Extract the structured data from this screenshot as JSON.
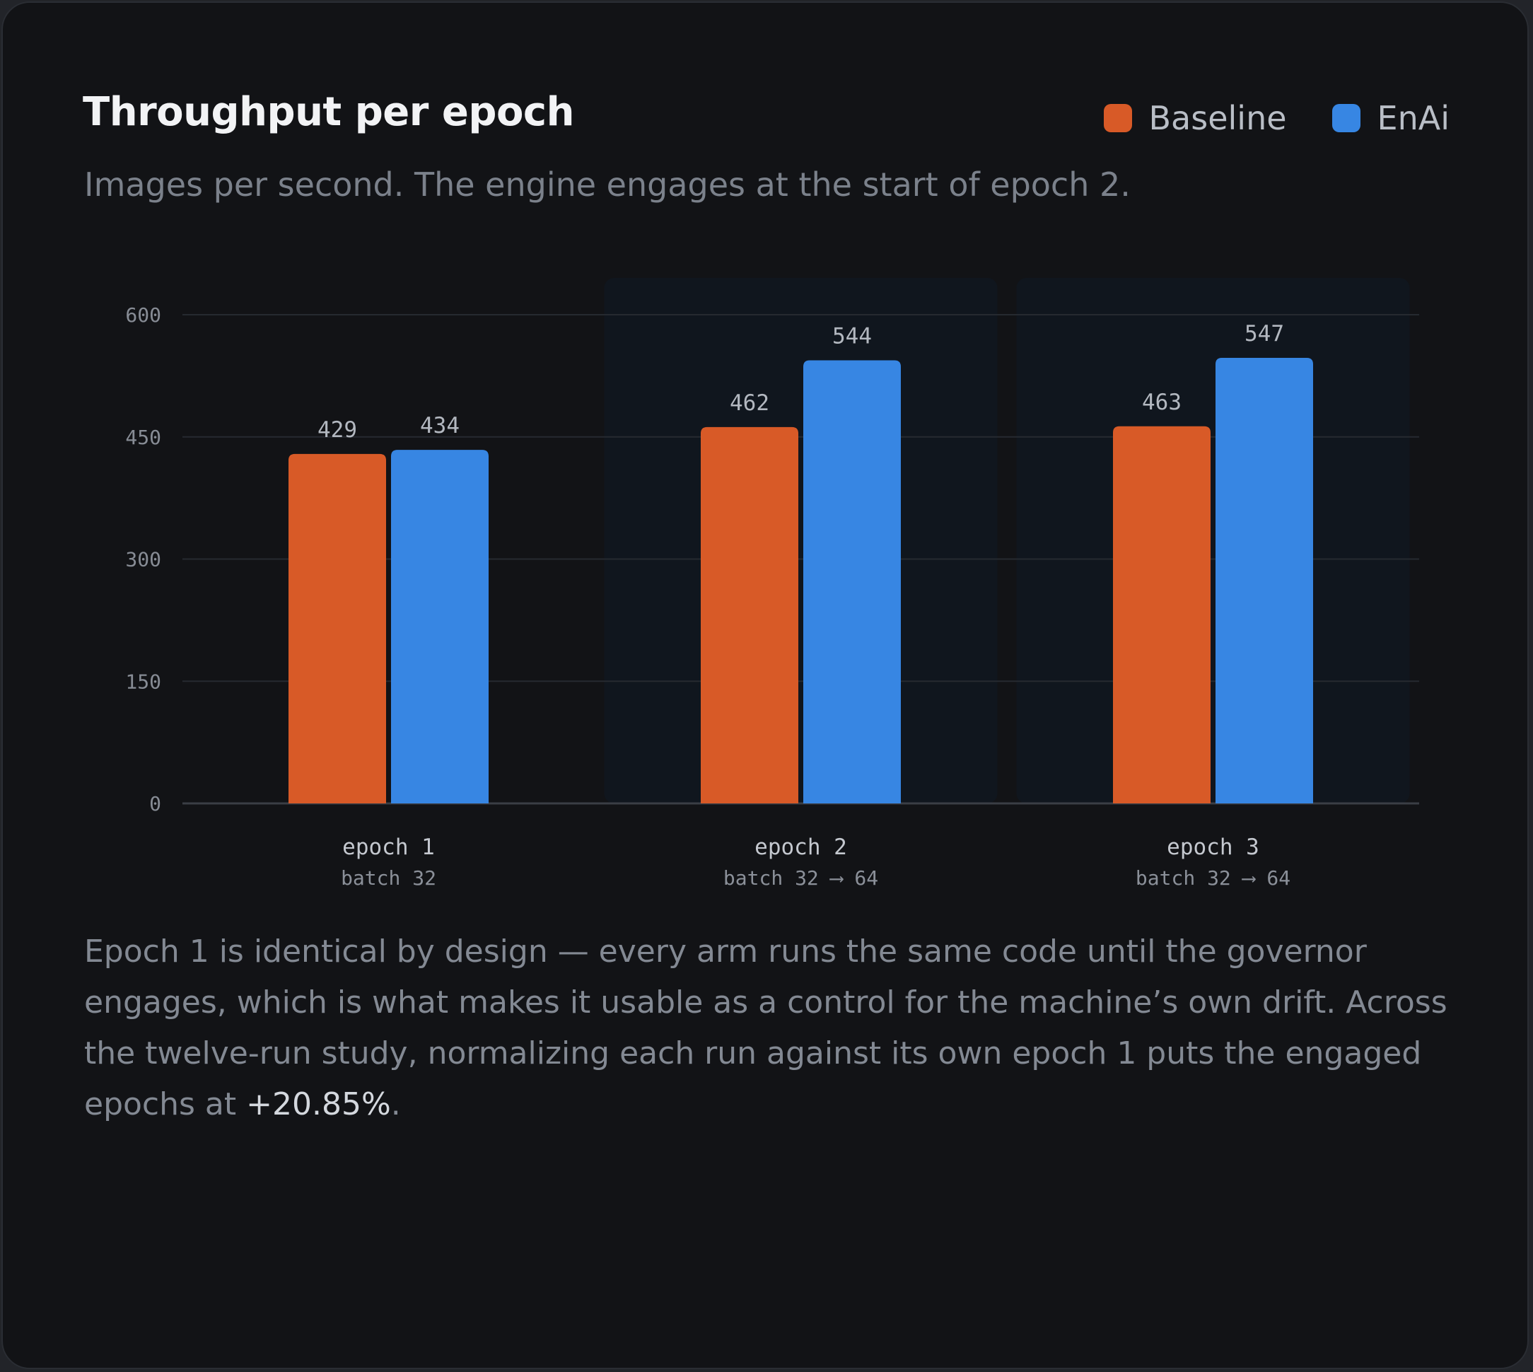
{
  "header": {
    "title": "Throughput per epoch",
    "subtitle": "Images per second. The engine engages at the start of epoch 2."
  },
  "colors": {
    "baseline": "#d85a27",
    "enai": "#3786e3",
    "engaged_band": "#10161e"
  },
  "chart_data": {
    "type": "bar",
    "title": "Throughput per epoch",
    "subtitle": "Images per second. The engine engages at the start of epoch 2.",
    "categories": [
      "epoch 1",
      "epoch 2",
      "epoch 3"
    ],
    "category_sublabels": [
      "batch 32",
      "batch 32 ⟶ 64",
      "batch 32 ⟶ 64"
    ],
    "series": [
      {
        "name": "Baseline",
        "values": [
          429,
          462,
          463
        ]
      },
      {
        "name": "EnAi",
        "values": [
          434,
          544,
          547
        ]
      }
    ],
    "ylim": [
      0,
      600
    ],
    "yticks": [
      0,
      150,
      300,
      450,
      600
    ],
    "grid": true,
    "legend_position": "top-right",
    "highlighted_categories": [
      "epoch 2",
      "epoch 3"
    ]
  },
  "note": {
    "text_before": "Epoch 1 is identical by design — every arm runs the same code until the governor engages, which is what makes it usable as a control for the machine’s own drift. Across the twelve-run study, normalizing each run against its own epoch 1 puts the engaged epochs at ",
    "highlight": "+20.85%",
    "text_after": "."
  }
}
